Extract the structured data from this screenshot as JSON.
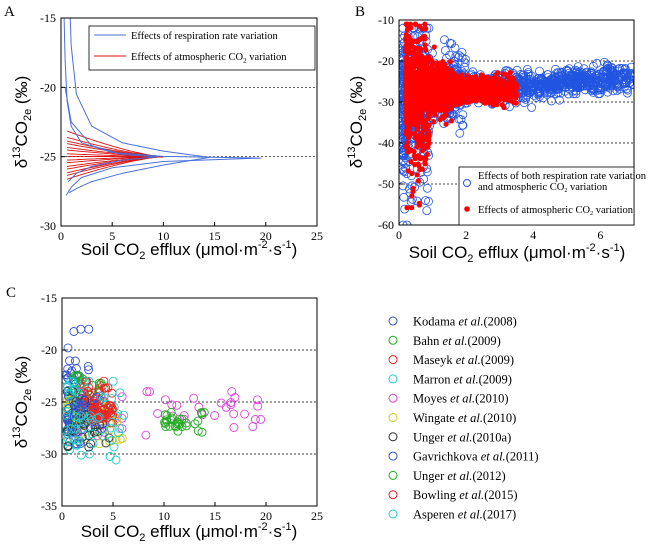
{
  "chart_data": [
    {
      "panel": "A",
      "type": "line",
      "xlabel": "Soil CO2 efflux (μmol·m⁻²·s⁻¹)",
      "ylabel": "δ13CO2e (‰)",
      "xlim": [
        0,
        25
      ],
      "ylim": [
        -30,
        -15
      ],
      "xticks": [
        0,
        5,
        10,
        15,
        20,
        25
      ],
      "yticks": [
        -30,
        -25,
        -20,
        -15
      ],
      "legend": [
        {
          "label": "Effects of respiration rate variation",
          "color": "#4a6fd6"
        },
        {
          "label": "Effects of atmospheric CO2 variation",
          "color": "#e01010"
        }
      ],
      "series": [
        {
          "name": "Effects of respiration rate variation",
          "points": [
            [
              0.3,
              -15
            ],
            [
              0.4,
              -18
            ],
            [
              0.6,
              -21
            ],
            [
              1.0,
              -22.8
            ],
            [
              2.0,
              -24.0
            ],
            [
              5.0,
              -24.7
            ],
            [
              10,
              -24.98
            ],
            [
              19.5,
              -25.1
            ],
            [
              10,
              -25.35
            ],
            [
              5,
              -25.8
            ],
            [
              2,
              -26.5
            ],
            [
              1,
              -27.2
            ],
            [
              0.5,
              -27.8
            ]
          ]
        },
        {
          "name": "Effects of respiration rate variation",
          "points": [
            [
              0.9,
              -15
            ],
            [
              1.0,
              -17
            ],
            [
              1.5,
              -20.5
            ],
            [
              3.0,
              -22.8
            ],
            [
              6.0,
              -24.0
            ],
            [
              10.0,
              -24.6
            ],
            [
              14.5,
              -25.05
            ],
            [
              10,
              -25.6
            ],
            [
              6,
              -26.2
            ],
            [
              3,
              -26.8
            ],
            [
              1.5,
              -27.3
            ],
            [
              0.8,
              -27.6
            ]
          ]
        },
        {
          "name": "Effects of respiration rate variation",
          "points": [
            [
              0.4,
              -20
            ],
            [
              1.0,
              -22.5
            ],
            [
              3.0,
              -24.2
            ],
            [
              6.0,
              -24.85
            ],
            [
              9.5,
              -25.0
            ],
            [
              6,
              -25.25
            ],
            [
              3,
              -25.7
            ],
            [
              1.5,
              -26.2
            ],
            [
              0.7,
              -26.8
            ]
          ]
        }
      ],
      "band": {
        "name": "Effects of atmospheric CO2 variation",
        "x": [
          0.6,
          10
        ],
        "y_center": -25.0,
        "y_spread_at_x0": 1.6
      }
    },
    {
      "panel": "B",
      "type": "scatter",
      "xlabel": "Soil CO2 efflux (μmol·m⁻²·s⁻¹)",
      "ylabel": "δ13CO2e (‰)",
      "xlim": [
        0,
        7
      ],
      "ylim": [
        -60,
        -10
      ],
      "xticks": [
        0,
        2,
        4,
        6
      ],
      "yticks": [
        -60,
        -50,
        -40,
        -30,
        -20,
        -10
      ],
      "legend": [
        {
          "label": "Effects of both respiration rate variation",
          "label2": "and atmospheric CO2 variation",
          "color": "#2255e0",
          "marker": "open-circle"
        },
        {
          "label": "Effects of atmospheric CO2 variation",
          "color": "#ff0000",
          "marker": "filled-circle"
        }
      ],
      "summary": [
        {
          "name": "Effects of both respiration rate variation and atmospheric CO2 variation",
          "x_range": [
            0.1,
            7.0
          ],
          "y_center_low_x": -28,
          "y_center_high_x": -24,
          "y_min": -60,
          "y_max": -12
        },
        {
          "name": "Effects of atmospheric CO2 variation",
          "x_range": [
            0.2,
            3.5
          ],
          "y_center": -27,
          "y_min": -57,
          "y_max": -11
        }
      ]
    },
    {
      "panel": "C",
      "type": "scatter",
      "xlabel": "Soil CO2 efflux (μmol·m⁻²·s⁻¹)",
      "ylabel": "δ13CO2e (‰)",
      "xlim": [
        0,
        25
      ],
      "ylim": [
        -35,
        -15
      ],
      "xticks": [
        0,
        5,
        10,
        15,
        20,
        25
      ],
      "yticks": [
        -35,
        -30,
        -25,
        -20,
        -15
      ],
      "series": [
        {
          "name": "Kodama et al.(2008)",
          "author": "Kodama",
          "etal": "et al.",
          "year": "(2008)",
          "color": "#3355cc",
          "x_range": [
            0.3,
            3
          ],
          "y_range": [
            -28,
            -18
          ]
        },
        {
          "name": "Bahn et al.(2009)",
          "author": "Bahn",
          "etal": "et al.",
          "year": "(2009)",
          "color": "#22aa22",
          "x_range": [
            1,
            4
          ],
          "y_range": [
            -27,
            -22
          ]
        },
        {
          "name": "Maseyk et al.(2009)",
          "author": "Maseyk",
          "etal": "et al.",
          "year": "(2009)",
          "color": "#ee2222",
          "x_range": [
            2,
            5
          ],
          "y_range": [
            -27,
            -23
          ]
        },
        {
          "name": "Marron et al.(2009)",
          "author": "Marron",
          "etal": "et al.",
          "year": "(2009)",
          "color": "#22cccc",
          "x_range": [
            0.5,
            6
          ],
          "y_range": [
            -30,
            -23
          ]
        },
        {
          "name": "Moyes et al.(2010)",
          "author": "Moyes",
          "etal": "et al.",
          "year": "(2010)",
          "color": "#dd44dd",
          "x_range": [
            1,
            20
          ],
          "y_range": [
            -31,
            -24
          ]
        },
        {
          "name": "Wingate et al.(2010)",
          "author": "Wingate",
          "etal": "et al.",
          "year": "(2010)",
          "color": "#cccc22",
          "x_range": [
            0.5,
            6
          ],
          "y_range": [
            -29,
            -24
          ]
        },
        {
          "name": "Unger et al.(2010a)",
          "author": "Unger",
          "etal": "et al.",
          "year": "(2010a)",
          "color": "#333333",
          "x_range": [
            0.5,
            5
          ],
          "y_range": [
            -30,
            -24
          ]
        },
        {
          "name": "Gavrichkova et al.(2011)",
          "author": "Gavrichkova",
          "etal": "et al.",
          "year": "(2011)",
          "color": "#3355cc",
          "x_range": [
            0.5,
            4
          ],
          "y_range": [
            -29,
            -24
          ]
        },
        {
          "name": "Unger et al.(2012)",
          "author": "Unger",
          "etal": "et al.",
          "year": "(2012)",
          "color": "#22aa22",
          "x_range": [
            10,
            14
          ],
          "y_range": [
            -28,
            -26
          ]
        },
        {
          "name": "Bowling et al.(2015)",
          "author": "Bowling",
          "etal": "et al.",
          "year": "(2015)",
          "color": "#ee2222",
          "x_range": [
            3,
            5
          ],
          "y_range": [
            -27,
            -25
          ]
        },
        {
          "name": "Asperen et al.(2017)",
          "author": "Asperen",
          "etal": "et al.",
          "year": "(2017)",
          "color": "#22cccc",
          "x_range": [
            0.3,
            7
          ],
          "y_range": [
            -31,
            -23
          ]
        }
      ]
    }
  ]
}
